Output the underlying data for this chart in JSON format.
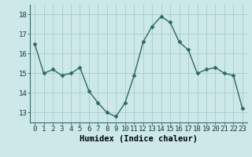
{
  "x": [
    0,
    1,
    2,
    3,
    4,
    5,
    6,
    7,
    8,
    9,
    10,
    11,
    12,
    13,
    14,
    15,
    16,
    17,
    18,
    19,
    20,
    21,
    22,
    23
  ],
  "y": [
    16.5,
    15.0,
    15.2,
    14.9,
    15.0,
    15.3,
    14.1,
    13.5,
    13.0,
    12.8,
    13.5,
    14.9,
    16.6,
    17.4,
    17.9,
    17.6,
    16.6,
    16.2,
    15.0,
    15.2,
    15.3,
    15.0,
    14.9,
    13.2
  ],
  "xlabel": "Humidex (Indice chaleur)",
  "ylim": [
    12.5,
    18.5
  ],
  "yticks": [
    13,
    14,
    15,
    16,
    17,
    18
  ],
  "xticks": [
    0,
    1,
    2,
    3,
    4,
    5,
    6,
    7,
    8,
    9,
    10,
    11,
    12,
    13,
    14,
    15,
    16,
    17,
    18,
    19,
    20,
    21,
    22,
    23
  ],
  "line_color": "#2e6b5e",
  "marker": "D",
  "marker_size": 2.5,
  "bg_color": "#cce8e8",
  "grid_color_major": "#a8cccc",
  "grid_color_minor": "#b8d8d8",
  "xlabel_fontsize": 7.5,
  "tick_fontsize": 6.5,
  "spine_color": "#3a6b6b",
  "line_width": 1.0
}
